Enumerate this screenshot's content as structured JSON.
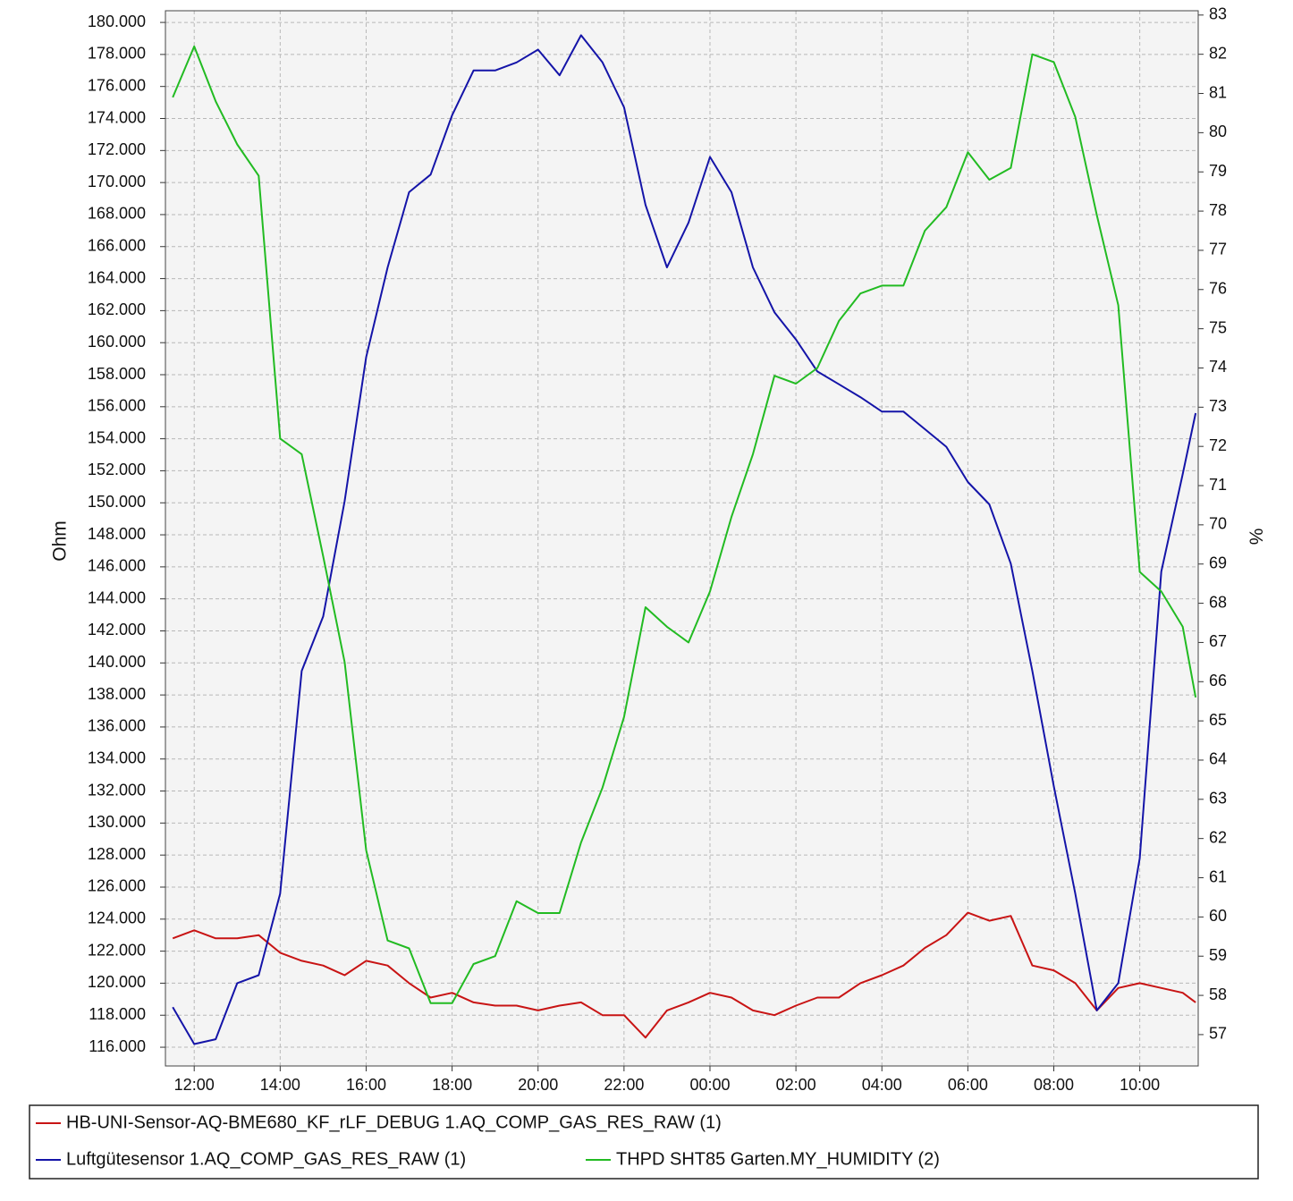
{
  "chart_data": {
    "type": "line",
    "y_label": "Ohm",
    "y2_label": "%",
    "x": [
      11.5,
      12,
      12.5,
      13,
      13.5,
      14,
      14.5,
      15,
      15.5,
      16,
      16.5,
      17,
      17.5,
      18,
      18.5,
      19,
      19.5,
      20,
      20.5,
      21,
      21.5,
      22,
      22.5,
      23,
      23.5,
      24,
      24.5,
      25,
      25.5,
      26,
      26.5,
      27,
      27.5,
      28,
      28.5,
      29,
      29.5,
      30,
      30.5,
      31,
      31.5,
      32,
      32.5,
      33,
      33.5,
      34,
      34.5,
      35,
      35.3
    ],
    "xlim": [
      11.33,
      35.36
    ],
    "xticks": [
      {
        "value": 12,
        "label": "12:00"
      },
      {
        "value": 14,
        "label": "14:00"
      },
      {
        "value": 16,
        "label": "16:00"
      },
      {
        "value": 18,
        "label": "18:00"
      },
      {
        "value": 20,
        "label": "20:00"
      },
      {
        "value": 22,
        "label": "22:00"
      },
      {
        "value": 24,
        "label": "00:00"
      },
      {
        "value": 26,
        "label": "02:00"
      },
      {
        "value": 28,
        "label": "04:00"
      },
      {
        "value": 30,
        "label": "06:00"
      },
      {
        "value": 32,
        "label": "08:00"
      },
      {
        "value": 34,
        "label": "10:00"
      }
    ],
    "ylim": [
      114830,
      180730
    ],
    "yticks": [
      {
        "value": 116000,
        "label": "116.000"
      },
      {
        "value": 118000,
        "label": "118.000"
      },
      {
        "value": 120000,
        "label": "120.000"
      },
      {
        "value": 122000,
        "label": "122.000"
      },
      {
        "value": 124000,
        "label": "124.000"
      },
      {
        "value": 126000,
        "label": "126.000"
      },
      {
        "value": 128000,
        "label": "128.000"
      },
      {
        "value": 130000,
        "label": "130.000"
      },
      {
        "value": 132000,
        "label": "132.000"
      },
      {
        "value": 134000,
        "label": "134.000"
      },
      {
        "value": 136000,
        "label": "136.000"
      },
      {
        "value": 138000,
        "label": "138.000"
      },
      {
        "value": 140000,
        "label": "140.000"
      },
      {
        "value": 142000,
        "label": "142.000"
      },
      {
        "value": 144000,
        "label": "144.000"
      },
      {
        "value": 146000,
        "label": "146.000"
      },
      {
        "value": 148000,
        "label": "148.000"
      },
      {
        "value": 150000,
        "label": "150.000"
      },
      {
        "value": 152000,
        "label": "152.000"
      },
      {
        "value": 154000,
        "label": "154.000"
      },
      {
        "value": 156000,
        "label": "156.000"
      },
      {
        "value": 158000,
        "label": "158.000"
      },
      {
        "value": 160000,
        "label": "160.000"
      },
      {
        "value": 162000,
        "label": "162.000"
      },
      {
        "value": 164000,
        "label": "164.000"
      },
      {
        "value": 166000,
        "label": "166.000"
      },
      {
        "value": 168000,
        "label": "168.000"
      },
      {
        "value": 170000,
        "label": "170.000"
      },
      {
        "value": 172000,
        "label": "172.000"
      },
      {
        "value": 174000,
        "label": "174.000"
      },
      {
        "value": 176000,
        "label": "176.000"
      },
      {
        "value": 178000,
        "label": "178.000"
      },
      {
        "value": 180000,
        "label": "180.000"
      }
    ],
    "y2lim": [
      56.2,
      83.11
    ],
    "y2ticks": [
      57,
      58,
      59,
      60,
      61,
      62,
      63,
      64,
      65,
      66,
      67,
      68,
      69,
      70,
      71,
      72,
      73,
      74,
      75,
      76,
      77,
      78,
      79,
      80,
      81,
      82,
      83
    ],
    "grid": true,
    "legend": "bottom",
    "series": [
      {
        "name": "HB-UNI-Sensor-AQ-BME680_KF_rLF_DEBUG 1.AQ_COMP_GAS_RES_RAW (1)",
        "color": "#c81414",
        "values": [
          122800,
          123300,
          122800,
          122800,
          123000,
          121900,
          121400,
          121100,
          120500,
          121400,
          121100,
          120000,
          119100,
          119400,
          118800,
          118600,
          118600,
          118300,
          118600,
          118800,
          118000,
          118000,
          116600,
          118300,
          118800,
          119400,
          119100,
          118300,
          118000,
          118600,
          119100,
          119100,
          120000,
          120500,
          121100,
          122200,
          123000,
          124400,
          123900,
          124200,
          121100,
          120800,
          120000,
          118300,
          119700,
          120000,
          119700,
          119400,
          118800
        ]
      },
      {
        "name": "Luftgütesensor 1.AQ_COMP_GAS_RES_RAW (1)",
        "color": "#1414a8",
        "values": [
          118500,
          116200,
          116500,
          120000,
          120500,
          125600,
          139500,
          142900,
          150100,
          159100,
          164700,
          169400,
          170500,
          174200,
          177000,
          177000,
          177500,
          178300,
          176700,
          179200,
          177500,
          174700,
          168600,
          164700,
          167500,
          171600,
          169400,
          164700,
          161900,
          160200,
          158200,
          157400,
          156600,
          155700,
          155700,
          154600,
          153500,
          151300,
          149900,
          146200,
          139500,
          132300,
          125600,
          118300,
          120000,
          127800,
          145700,
          151800,
          155600
        ]
      },
      {
        "name": "THPD SHT85 Garten.MY_HUMIDITY (2)",
        "color": "#22bb22",
        "axis": "y2",
        "values": [
          80.9,
          82.2,
          80.8,
          79.7,
          78.9,
          72.2,
          71.8,
          69.2,
          66.5,
          61.7,
          59.4,
          59.2,
          57.8,
          57.8,
          58.8,
          59.0,
          60.4,
          60.1,
          60.1,
          61.9,
          63.3,
          65.1,
          67.9,
          67.4,
          67.0,
          68.3,
          70.2,
          71.8,
          73.8,
          73.6,
          74.0,
          75.2,
          75.9,
          76.1,
          76.1,
          77.5,
          78.1,
          79.5,
          78.8,
          79.1,
          82.0,
          81.8,
          80.4,
          77.9,
          75.6,
          68.8,
          68.3,
          67.4,
          65.6
        ]
      }
    ]
  }
}
